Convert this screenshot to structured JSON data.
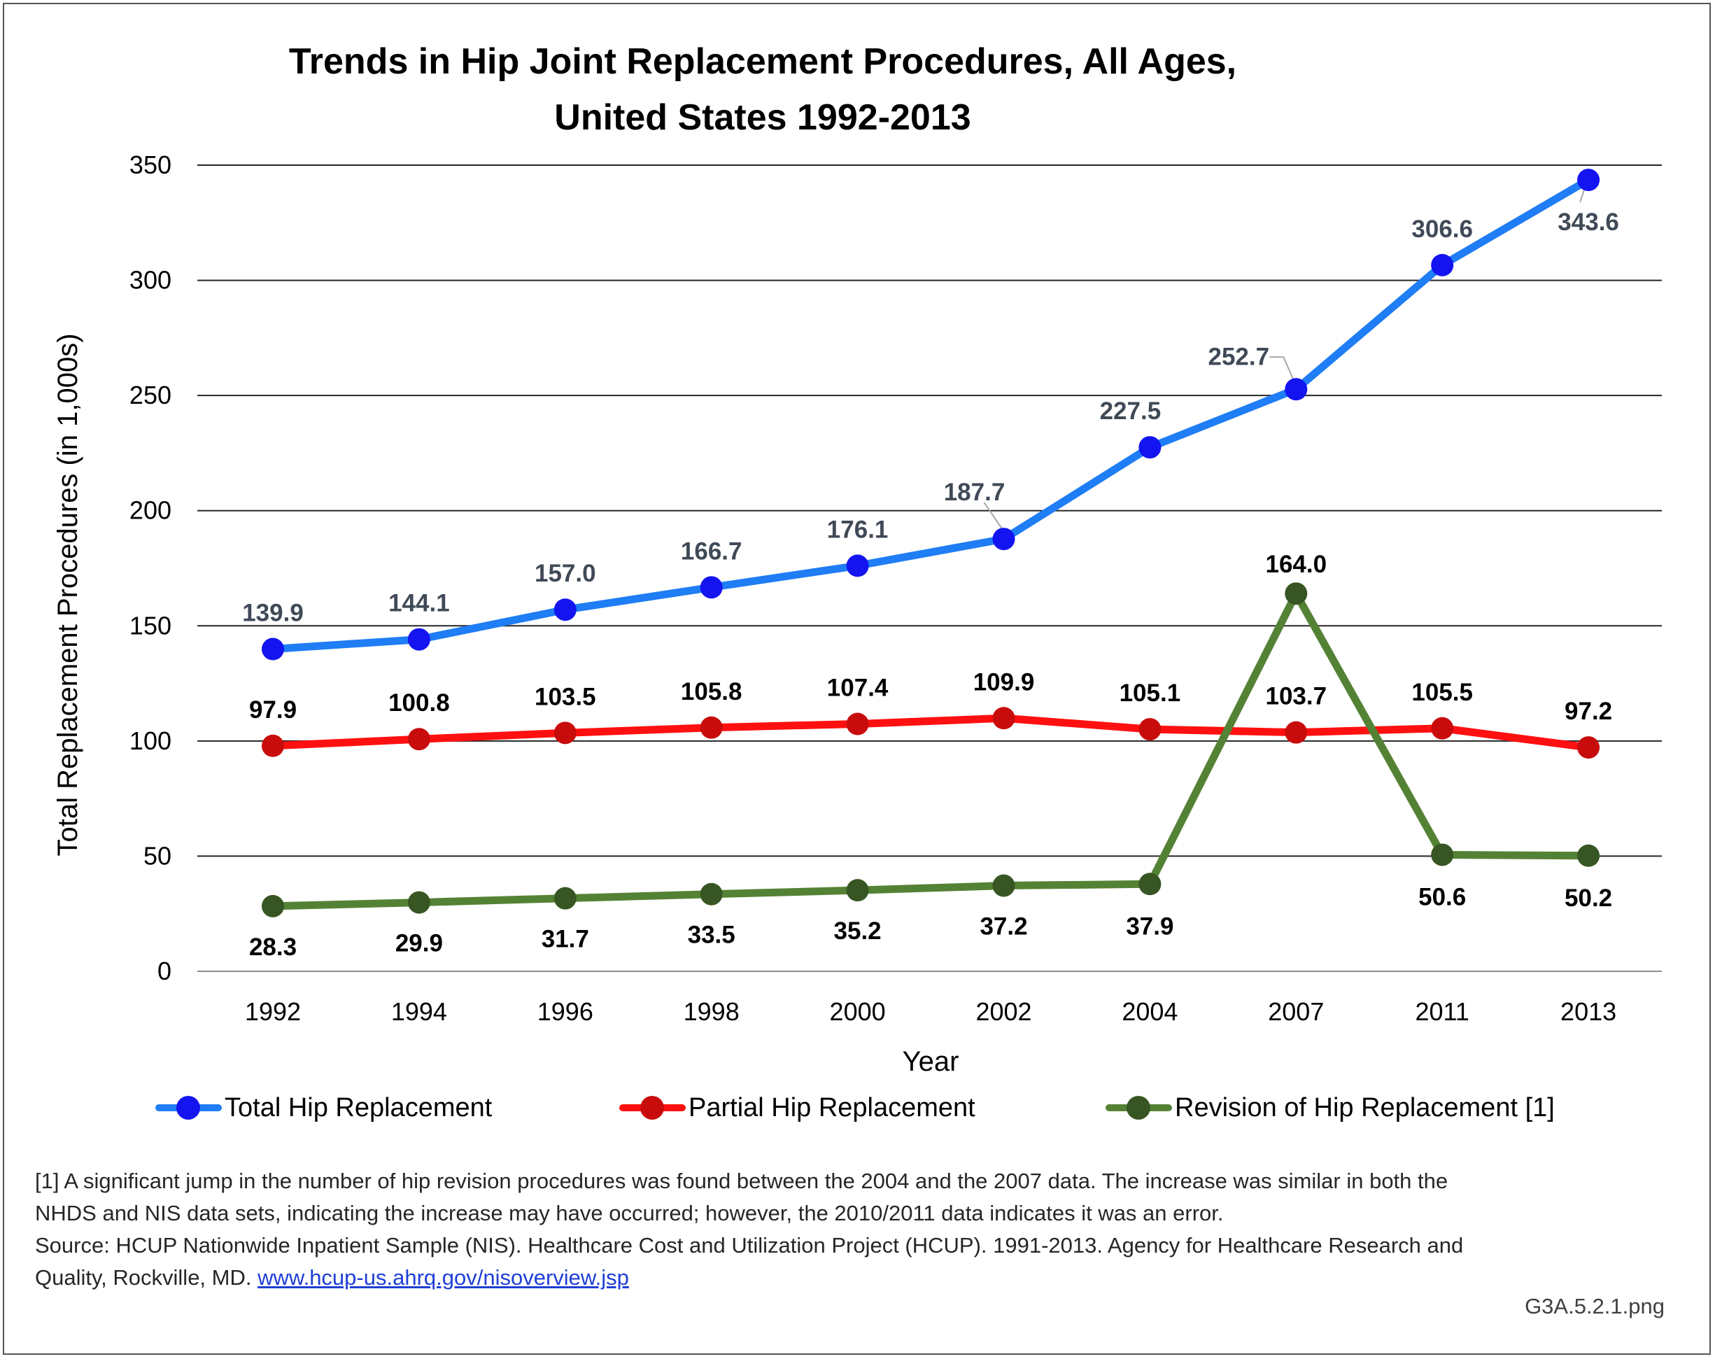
{
  "chart_data": {
    "type": "line",
    "title": "Trends in Hip Joint Replacement Procedures, All Ages, United States 1992-2013",
    "title_lines": [
      "Trends in Hip Joint Replacement Procedures, All Ages,",
      "United States 1992-2013"
    ],
    "xlabel": "Year",
    "ylabel": "Total Replacement Procedures (in 1,000s)",
    "categories": [
      "1992",
      "1994",
      "1996",
      "1998",
      "2000",
      "2002",
      "2004",
      "2007",
      "2011",
      "2013"
    ],
    "ylim": [
      0,
      350
    ],
    "yticks": [
      0,
      50,
      100,
      150,
      200,
      250,
      300,
      350
    ],
    "grid": true,
    "legend_position": "bottom",
    "series": [
      {
        "name": "Total Hip Replacement",
        "color": "#1f7df5",
        "marker_color": "#1414f0",
        "label_color": "#404a57",
        "values": [
          139.9,
          144.1,
          157.0,
          166.7,
          176.1,
          187.7,
          227.5,
          252.7,
          306.6,
          343.6
        ],
        "labels": [
          "139.9",
          "144.1",
          "157.0",
          "166.7",
          "176.1",
          "187.7",
          "227.5",
          "252.7",
          "306.6",
          "343.6"
        ]
      },
      {
        "name": "Partial Hip Replacement",
        "color": "#ff1010",
        "marker_color": "#c80c0c",
        "label_color": "#000000",
        "values": [
          97.9,
          100.8,
          103.5,
          105.8,
          107.4,
          109.9,
          105.1,
          103.7,
          105.5,
          97.2
        ],
        "labels": [
          "97.9",
          "100.8",
          "103.5",
          "105.8",
          "107.4",
          "109.9",
          "105.1",
          "103.7",
          "105.5",
          "97.2"
        ]
      },
      {
        "name": "Revision of Hip Replacement [1]",
        "color": "#548235",
        "marker_color": "#375623",
        "label_color": "#000000",
        "values": [
          28.3,
          29.9,
          31.7,
          33.5,
          35.2,
          37.2,
          37.9,
          164.0,
          50.6,
          50.2
        ],
        "labels": [
          "28.3",
          "29.9",
          "31.7",
          "33.5",
          "35.2",
          "37.2",
          "37.9",
          "164.0",
          "50.6",
          "50.2"
        ]
      }
    ]
  },
  "notes": {
    "footnote": "[1] A significant jump in the number of hip revision procedures was found between the 2004 and the 2007 data. The increase was similar in both the NHDS and NIS data sets, indicating the increase may have occurred; however, the 2010/2011 data indicates it was an error.",
    "source_text": "Source: HCUP Nationwide Inpatient Sample (NIS). Healthcare Cost and Utilization Project (HCUP). 1991-2013. Agency for Healthcare Research and Quality, Rockville, MD.",
    "source_link": "www.hcup-us.ahrq.gov/nisoverview.jsp"
  },
  "file_label": "G3A.5.2.1.png"
}
